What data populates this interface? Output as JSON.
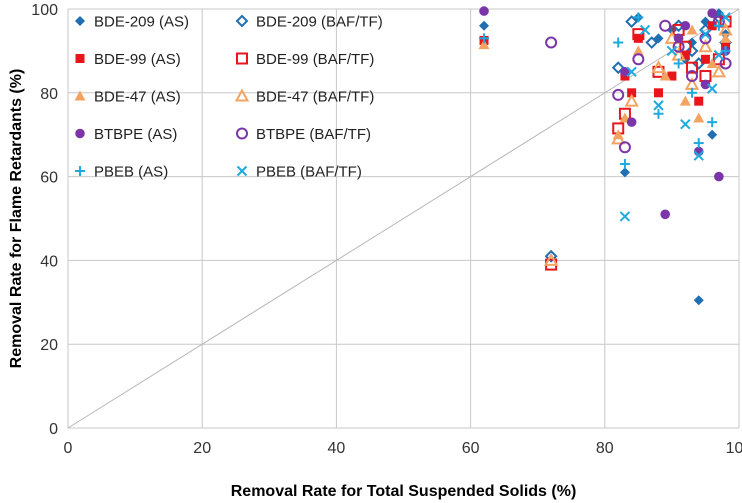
{
  "chart_data": {
    "type": "scatter",
    "xlabel": "Removal Rate for Total Suspended Solids (%)",
    "ylabel": "Removal Rate for Flame Retardants (%)",
    "xlim": [
      0,
      100
    ],
    "ylim": [
      0,
      100
    ],
    "x_ticks": [
      "0",
      "20",
      "40",
      "60",
      "80",
      "100"
    ],
    "y_ticks": [
      "0",
      "20",
      "40",
      "60",
      "80",
      "100"
    ],
    "grid": true,
    "reference_line": "y = x",
    "legend_position": "top-left",
    "series": [
      {
        "name": "BDE-209 (AS)",
        "marker": "diamond-filled",
        "color": "#1f6fb2",
        "points": [
          [
            62,
            96
          ],
          [
            83,
            61
          ],
          [
            94,
            30.5
          ],
          [
            96,
            70
          ],
          [
            85,
            98
          ],
          [
            90,
            95
          ],
          [
            93,
            92
          ],
          [
            95,
            97
          ],
          [
            97,
            99
          ],
          [
            98,
            94
          ],
          [
            88,
            93
          ],
          [
            92,
            88
          ]
        ]
      },
      {
        "name": "BDE-209 (BAF/TF)",
        "marker": "diamond-open",
        "color": "#1f6fb2",
        "points": [
          [
            72,
            41
          ],
          [
            82,
            86
          ],
          [
            84,
            97
          ],
          [
            87,
            92
          ],
          [
            91,
            96
          ],
          [
            93,
            90
          ],
          [
            95,
            95
          ],
          [
            97,
            98
          ],
          [
            98,
            92
          ],
          [
            94,
            87
          ]
        ]
      },
      {
        "name": "BDE-99 (AS)",
        "marker": "square-filled",
        "color": "#e8161b",
        "points": [
          [
            62,
            92.5
          ],
          [
            83,
            84
          ],
          [
            84,
            80
          ],
          [
            85,
            93
          ],
          [
            88,
            80
          ],
          [
            92,
            89
          ],
          [
            94,
            78
          ],
          [
            95,
            88
          ],
          [
            96,
            96
          ],
          [
            98,
            91
          ],
          [
            90,
            84
          ]
        ]
      },
      {
        "name": "BDE-99 (BAF/TF)",
        "marker": "square-open",
        "color": "#e8161b",
        "points": [
          [
            72,
            39
          ],
          [
            82,
            71.5
          ],
          [
            83,
            75
          ],
          [
            85,
            94
          ],
          [
            88,
            85
          ],
          [
            91,
            95
          ],
          [
            93,
            86
          ],
          [
            95,
            84
          ],
          [
            97,
            88
          ],
          [
            98,
            97
          ],
          [
            92,
            91
          ]
        ]
      },
      {
        "name": "BDE-47 (AS)",
        "marker": "triangle-filled",
        "color": "#f4a460",
        "points": [
          [
            62,
            91.5
          ],
          [
            82,
            70
          ],
          [
            83,
            74
          ],
          [
            85,
            90
          ],
          [
            89,
            84
          ],
          [
            92,
            78
          ],
          [
            94,
            74
          ],
          [
            96,
            87
          ],
          [
            98,
            93
          ],
          [
            93,
            95
          ]
        ]
      },
      {
        "name": "BDE-47 (BAF/TF)",
        "marker": "triangle-open",
        "color": "#f4a460",
        "points": [
          [
            72,
            40
          ],
          [
            82,
            69
          ],
          [
            84,
            78
          ],
          [
            88,
            86
          ],
          [
            90,
            93
          ],
          [
            93,
            82
          ],
          [
            95,
            91
          ],
          [
            97,
            85
          ],
          [
            98,
            95
          ],
          [
            91,
            89
          ]
        ]
      },
      {
        "name": "BTBPE (AS)",
        "marker": "circle-filled",
        "color": "#7b35a8",
        "points": [
          [
            62,
            99.5
          ],
          [
            83,
            85
          ],
          [
            84,
            73
          ],
          [
            89,
            51
          ],
          [
            91,
            93
          ],
          [
            94,
            66
          ],
          [
            96,
            99
          ],
          [
            97,
            60
          ],
          [
            98,
            90
          ],
          [
            95,
            82
          ],
          [
            92,
            96
          ]
        ]
      },
      {
        "name": "BTBPE (BAF/TF)",
        "marker": "circle-open",
        "color": "#7b35a8",
        "points": [
          [
            72,
            92
          ],
          [
            82,
            79.5
          ],
          [
            83,
            67
          ],
          [
            85,
            88
          ],
          [
            89,
            96
          ],
          [
            93,
            84
          ],
          [
            95,
            93
          ],
          [
            97,
            97
          ],
          [
            98,
            87
          ],
          [
            91,
            91
          ]
        ]
      },
      {
        "name": "PBEB (AS)",
        "marker": "plus",
        "color": "#1eaadf",
        "points": [
          [
            62,
            93
          ],
          [
            82,
            92
          ],
          [
            83,
            63
          ],
          [
            85,
            98
          ],
          [
            88,
            75
          ],
          [
            91,
            87
          ],
          [
            94,
            68
          ],
          [
            96,
            73
          ],
          [
            97,
            96
          ],
          [
            98,
            90
          ],
          [
            93,
            80
          ]
        ]
      },
      {
        "name": "PBEB (BAF/TF)",
        "marker": "cross",
        "color": "#1eaadf",
        "points": [
          [
            83,
            50.5
          ],
          [
            84,
            85
          ],
          [
            86,
            95
          ],
          [
            88,
            77
          ],
          [
            92,
            72.5
          ],
          [
            94,
            65
          ],
          [
            95,
            94
          ],
          [
            96,
            81
          ],
          [
            98,
            98
          ],
          [
            90,
            90
          ],
          [
            97,
            89
          ]
        ]
      }
    ]
  }
}
